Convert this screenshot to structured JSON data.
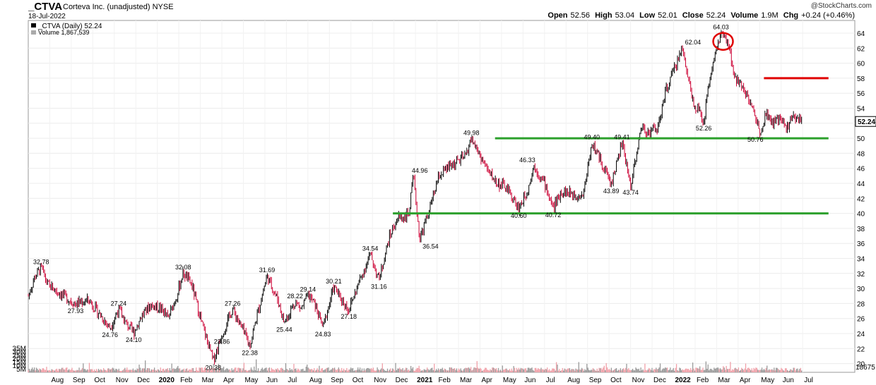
{
  "header": {
    "ticker": "_CTVA",
    "company": "Corteva Inc. (unadjusted)",
    "exchange": "NYSE",
    "date": "18-Jul-2022",
    "brand": "@StockCharts.com",
    "quote": {
      "open_label": "Open",
      "open": "52.56",
      "high_label": "High",
      "high": "53.04",
      "low_label": "Low",
      "low": "52.01",
      "close_label": "Close",
      "close": "52.24",
      "volume_label": "Volume",
      "volume": "1.9M",
      "chg_label": "Chg",
      "chg": "+0.24 (+0.46%)"
    }
  },
  "legend": {
    "price": "_CTVA (Daily) 52.24",
    "volume": "Volume 1,867,539"
  },
  "colors": {
    "up": "#000000",
    "down": "#cc0033",
    "support": "#2ca02c",
    "resistance": "#e00000",
    "vol_up": "#9a9a9a",
    "vol_down": "#f0a0a8"
  },
  "chart_data": {
    "type": "line",
    "title": "_CTVA (Daily)",
    "ylim": [
      19,
      65
    ],
    "y_ticks": [
      64,
      62,
      60,
      58,
      56,
      54,
      52,
      50,
      48,
      46,
      44,
      42,
      40,
      38,
      36,
      34,
      32,
      30,
      28,
      26,
      24,
      22,
      20
    ],
    "x_ticks": [
      "Aug",
      "Sep",
      "Oct",
      "Nov",
      "Dec",
      "2020",
      "Feb",
      "Mar",
      "Apr",
      "May",
      "Jun",
      "Jul",
      "Aug",
      "Sep",
      "Oct",
      "Nov",
      "Dec",
      "2021",
      "Feb",
      "Mar",
      "Apr",
      "May",
      "Jun",
      "Jul",
      "Aug",
      "Sep",
      "Oct",
      "Nov",
      "Dec",
      "2022",
      "Feb",
      "Mar",
      "Apr",
      "May",
      "Jun",
      "Jul"
    ],
    "x_tick_months": [
      1,
      2,
      3,
      4,
      5,
      6,
      7,
      8,
      9,
      10,
      11,
      12,
      13,
      14,
      15,
      16,
      17,
      18,
      19,
      20,
      21,
      22,
      23,
      24,
      25,
      26,
      27,
      28,
      29,
      30,
      31,
      32,
      33,
      34,
      35,
      36
    ],
    "series": [
      {
        "months": [
          0.0,
          0.3,
          0.6,
          0.9,
          1.5,
          2.2,
          2.8,
          3.2,
          3.8,
          4.2,
          4.5,
          4.9,
          5.3,
          5.7,
          6.2,
          6.5,
          6.9,
          7.2,
          7.6,
          8.1,
          8.6,
          9.0,
          9.5,
          9.8,
          10.3,
          10.6,
          11.1,
          11.6,
          11.9,
          12.4,
          12.7,
          13.0,
          13.3,
          13.7,
          14.2,
          14.5,
          14.9,
          15.4,
          15.9,
          16.3,
          16.8,
          17.2,
          17.5,
          17.7,
          17.9,
          18.2,
          18.7,
          19.1,
          19.7,
          20.3,
          20.6,
          20.9,
          21.4,
          21.8,
          22.2,
          22.8,
          23.2,
          23.5,
          24.0,
          24.4,
          24.8,
          25.4,
          25.8,
          26.2,
          26.7,
          27.1,
          27.6,
          28.0,
          28.5,
          28.8,
          29.3,
          29.6,
          30.0,
          30.4,
          30.9,
          31.4,
          31.7,
          32.2,
          32.6,
          32.8,
          33.2,
          33.5,
          33.8,
          34.0,
          34.3,
          34.6,
          34.9,
          35.3,
          35.6,
          35.95
        ],
        "values": [
          29.0,
          31.5,
          32.78,
          30.5,
          29.3,
          27.93,
          28.5,
          27.0,
          24.76,
          27.24,
          25.5,
          24.1,
          26.5,
          27.8,
          27.3,
          26.0,
          29.0,
          32.08,
          30.5,
          25.0,
          20.38,
          23.86,
          27.26,
          25.5,
          22.38,
          26.0,
          31.69,
          28.5,
          25.44,
          28.22,
          27.3,
          29.14,
          28.0,
          24.83,
          30.21,
          28.8,
          27.18,
          31.0,
          34.54,
          31.16,
          37.0,
          39.5,
          39.5,
          40.0,
          44.96,
          36.54,
          41.0,
          45.0,
          46.5,
          47.5,
          49.98,
          48.2,
          45.5,
          44.0,
          43.5,
          40.6,
          43.0,
          46.33,
          44.0,
          40.72,
          43.0,
          42.5,
          42.5,
          49.4,
          46.5,
          43.89,
          49.41,
          43.74,
          51.5,
          50.8,
          51.5,
          56.0,
          59.0,
          62.04,
          55.0,
          52.26,
          58.5,
          64.03,
          62.0,
          58.0,
          57.2,
          55.0,
          53.0,
          50.76,
          53.5,
          52.0,
          52.5,
          51.5,
          53.0,
          52.24
        ]
      }
    ],
    "annotations": [
      "32.78",
      "27.93",
      "24.76",
      "27.24",
      "24.10",
      "32.08",
      "20.38",
      "23.86",
      "27.26",
      "22.38",
      "31.69",
      "25.44",
      "28.22",
      "29.14",
      "24.83",
      "30.21",
      "27.18",
      "34.54",
      "31.16",
      "44.96",
      "36.54",
      "49.98",
      "46.33",
      "40.60",
      "40.72",
      "49.40",
      "43.89",
      "49.41",
      "43.74",
      "62.04",
      "64.03",
      "52.26",
      "50.76"
    ],
    "annotation_points": [
      [
        0.6,
        32.78
      ],
      [
        2.2,
        27.93
      ],
      [
        3.8,
        24.76
      ],
      [
        4.2,
        27.24
      ],
      [
        4.9,
        24.1
      ],
      [
        7.2,
        32.08
      ],
      [
        8.6,
        20.38
      ],
      [
        9.0,
        23.86
      ],
      [
        9.5,
        27.26
      ],
      [
        10.3,
        22.38
      ],
      [
        11.1,
        31.69
      ],
      [
        11.9,
        25.44
      ],
      [
        12.4,
        28.22
      ],
      [
        13.0,
        29.14
      ],
      [
        13.7,
        24.83
      ],
      [
        14.2,
        30.21
      ],
      [
        14.9,
        27.18
      ],
      [
        15.9,
        34.54
      ],
      [
        16.3,
        31.16
      ],
      [
        18.2,
        44.96
      ],
      [
        18.7,
        36.54
      ],
      [
        20.6,
        49.98
      ],
      [
        23.2,
        46.33
      ],
      [
        22.8,
        40.6
      ],
      [
        24.4,
        40.72
      ],
      [
        26.2,
        49.4
      ],
      [
        27.1,
        43.89
      ],
      [
        27.6,
        49.41
      ],
      [
        28.0,
        43.74
      ],
      [
        30.9,
        62.04
      ],
      [
        32.2,
        64.03
      ],
      [
        31.4,
        52.26
      ],
      [
        33.8,
        50.76
      ]
    ],
    "support_lines": [
      {
        "value": 50.0,
        "from_month": 21.7,
        "to_month": 37.2
      },
      {
        "value": 40.0,
        "from_month": 16.95,
        "to_month": 37.2
      }
    ],
    "resistance_line": {
      "value": 58.0,
      "from_month": 34.2,
      "to_month": 37.2
    },
    "highlight_circle_at": [
      32.3,
      62.9
    ],
    "volume_axis": {
      "ylim": [
        0,
        36
      ],
      "ticks": [
        "35M",
        "30M",
        "25M",
        "20M",
        "15M",
        "10M",
        "5M"
      ],
      "tick_values": [
        35,
        30,
        25,
        20,
        15,
        10,
        5
      ],
      "last_value": 1.867539
    },
    "last_price_label": "52.24",
    "volume_right_label": "18675"
  }
}
